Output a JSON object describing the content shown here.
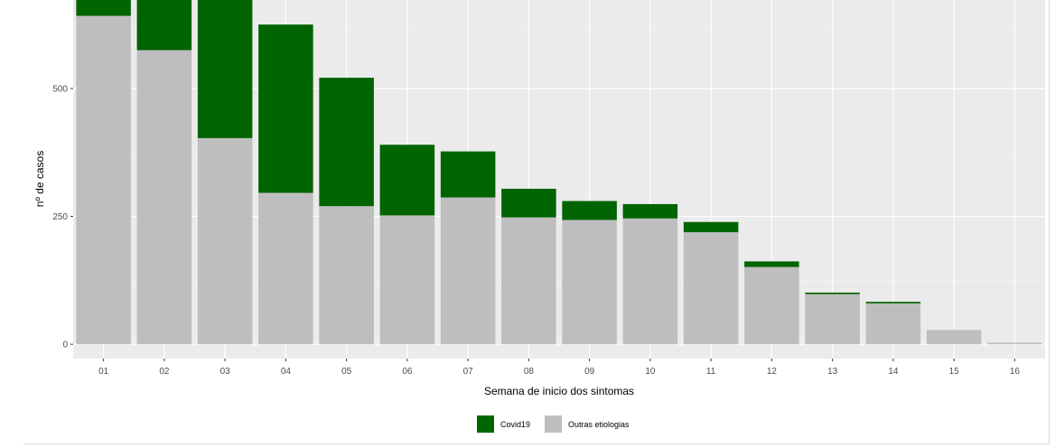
{
  "chart_data": {
    "type": "bar",
    "stacked": true,
    "xlabel": "Semana de inicio dos sintomas",
    "ylabel": "nº de casos",
    "categories": [
      "01",
      "02",
      "03",
      "04",
      "05",
      "06",
      "07",
      "08",
      "09",
      "10",
      "11",
      "12",
      "13",
      "14",
      "15",
      "16"
    ],
    "series": [
      {
        "name": "Outras etiologias",
        "color": "#bebebe",
        "values": [
          642,
          575,
          403,
          296,
          270,
          252,
          287,
          248,
          243,
          246,
          219,
          151,
          98,
          80,
          28,
          3
        ]
      },
      {
        "name": "Covid19",
        "color": "#006400",
        "values": [
          60,
          120,
          280,
          329,
          251,
          138,
          90,
          56,
          37,
          28,
          20,
          11,
          3,
          3,
          0,
          0
        ]
      }
    ],
    "ylim": [
      -28,
      673
    ],
    "yticks": [
      0,
      250,
      500
    ],
    "grid": true,
    "legend": {
      "position": "bottom",
      "order": [
        "Covid19",
        "Outras etiologias"
      ]
    }
  }
}
